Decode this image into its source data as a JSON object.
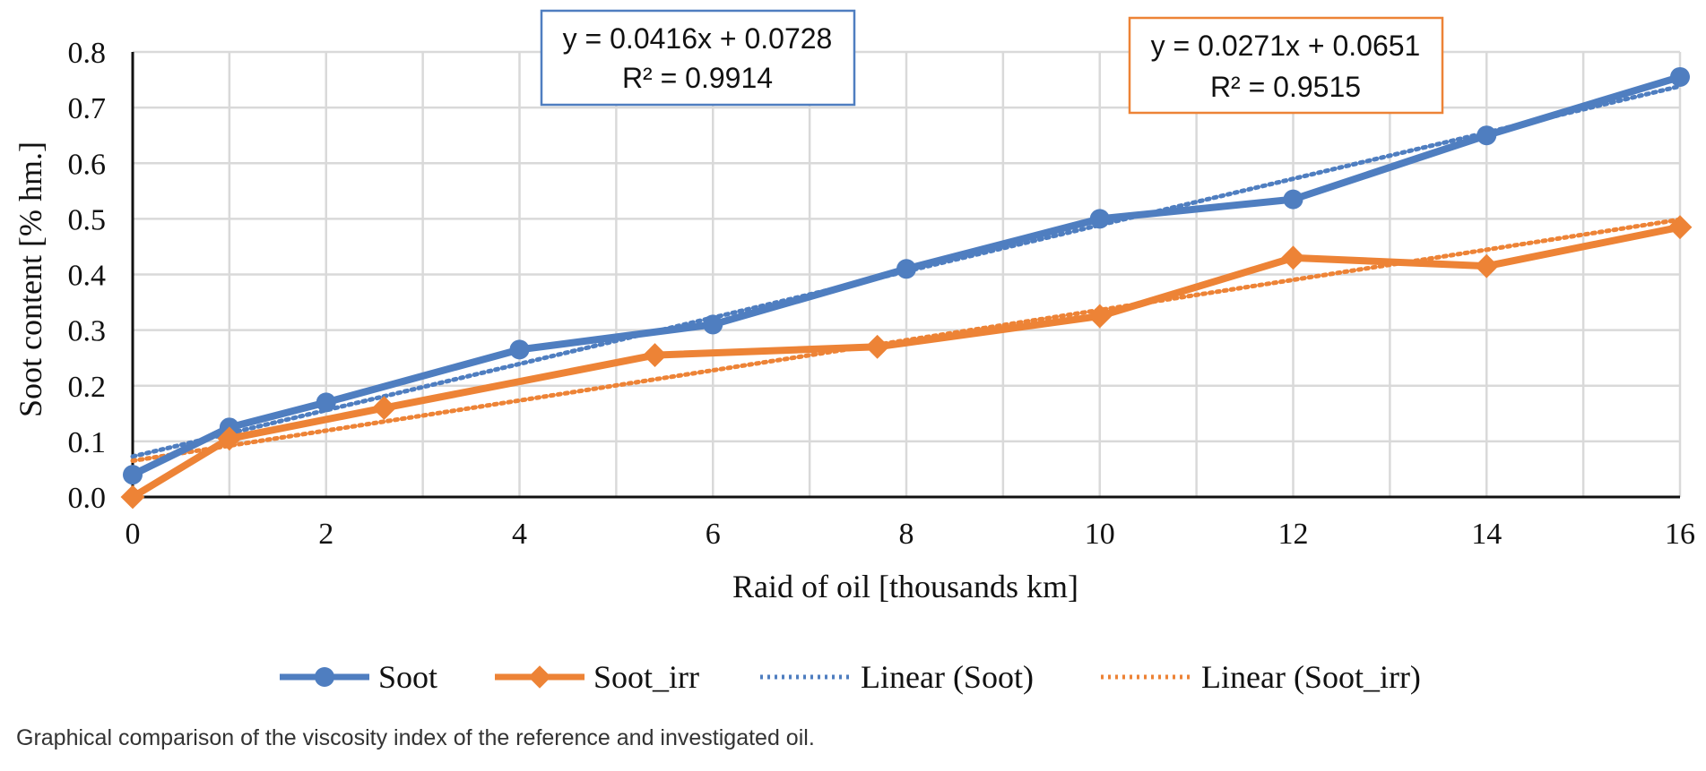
{
  "caption": "Graphical comparison of the viscosity index of the reference and investigated oil.",
  "chart_data": {
    "type": "line",
    "title": "",
    "xlabel": "Raid of oil [thousands km]",
    "ylabel": "Soot content [% hm.]",
    "xlim": [
      0,
      16
    ],
    "ylim": [
      0,
      0.8
    ],
    "x_ticks": [
      0,
      2,
      4,
      6,
      8,
      10,
      12,
      14,
      16
    ],
    "y_ticks": [
      "0.0",
      "0.1",
      "0.2",
      "0.3",
      "0.4",
      "0.5",
      "0.6",
      "0.7",
      "0.8"
    ],
    "grid": true,
    "legend_position": "bottom",
    "series": [
      {
        "name": "Soot",
        "color": "#4f7ec0",
        "marker": "circle",
        "x": [
          0,
          1,
          2,
          4,
          6,
          8,
          10,
          12,
          14,
          16
        ],
        "y": [
          0.04,
          0.125,
          0.17,
          0.265,
          0.31,
          0.41,
          0.5,
          0.535,
          0.65,
          0.755
        ]
      },
      {
        "name": "Soot_irr",
        "color": "#ed8336",
        "marker": "diamond",
        "x": [
          0,
          1,
          2.6,
          5.4,
          7.7,
          10,
          12,
          14,
          16
        ],
        "y": [
          0.0,
          0.105,
          0.16,
          0.255,
          0.27,
          0.325,
          0.43,
          0.415,
          0.485
        ]
      }
    ],
    "trendlines": [
      {
        "name": "Linear (Soot)",
        "color": "#4f7ec0",
        "slope": 0.0416,
        "intercept": 0.0728,
        "equation": "y = 0.0416x + 0.0728",
        "r2": "R² = 0.9914"
      },
      {
        "name": "Linear (Soot_irr)",
        "color": "#ed8336",
        "slope": 0.0271,
        "intercept": 0.0651,
        "equation": "y = 0.0271x + 0.0651",
        "r2": "R² = 0.9515"
      }
    ]
  }
}
